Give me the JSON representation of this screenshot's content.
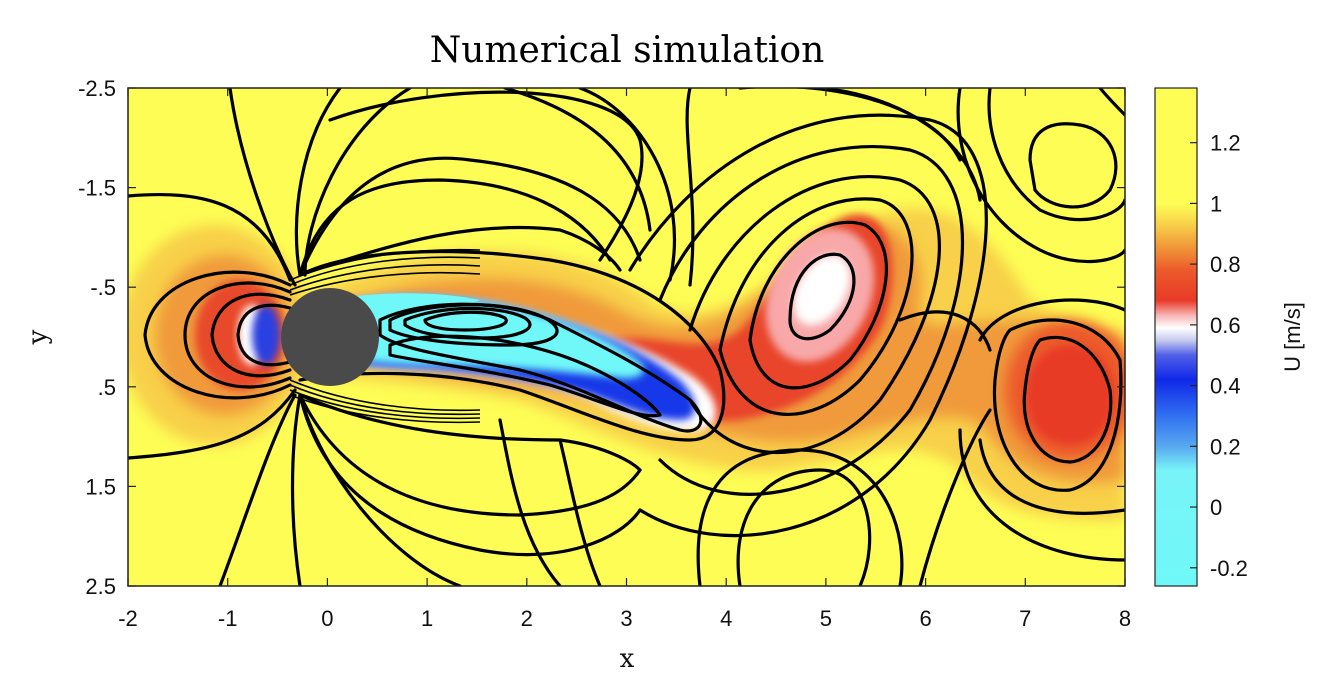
{
  "chart_data": {
    "type": "heatmap",
    "title": "Numerical simulation",
    "xlabel": "x",
    "ylabel": "y",
    "colorbar_label": "U [m/s]",
    "xlim": [
      -2,
      8
    ],
    "ylim": [
      -2.5,
      2.5
    ],
    "y_reversed": true,
    "x_ticks": [
      "-2",
      "-1",
      "0",
      "1",
      "2",
      "3",
      "4",
      "5",
      "6",
      "7",
      "8"
    ],
    "y_ticks": [
      "-2.5",
      "-1.5",
      "-.5",
      ".5",
      "1.5",
      "2.5"
    ],
    "colorbar_ticks": [
      "1.2",
      "1",
      "0.8",
      "0.6",
      "0.4",
      "0.2",
      "0",
      "-0.2"
    ],
    "colorbar_range": [
      -0.26,
      1.38
    ],
    "colorbar_stops": [
      {
        "value": -0.26,
        "color": "#70f8f8"
      },
      {
        "value": 0.12,
        "color": "#78f4f8"
      },
      {
        "value": 0.2,
        "color": "#58a8f0"
      },
      {
        "value": 0.3,
        "color": "#3070f0"
      },
      {
        "value": 0.42,
        "color": "#1028e8"
      },
      {
        "value": 0.5,
        "color": "#5060e8"
      },
      {
        "value": 0.55,
        "color": "#c8ccf0"
      },
      {
        "value": 0.59,
        "color": "#ffffff"
      },
      {
        "value": 0.63,
        "color": "#f8b8b8"
      },
      {
        "value": 0.68,
        "color": "#e83a28"
      },
      {
        "value": 0.78,
        "color": "#ec5a2a"
      },
      {
        "value": 0.86,
        "color": "#f09a3a"
      },
      {
        "value": 0.93,
        "color": "#f8d04a"
      },
      {
        "value": 1.0,
        "color": "#fdfd55"
      },
      {
        "value": 1.38,
        "color": "#fdfd55"
      }
    ],
    "cylinder": {
      "center": [
        0,
        0
      ],
      "radius": 0.5,
      "color": "#4a4a4a"
    },
    "grid": false
  }
}
